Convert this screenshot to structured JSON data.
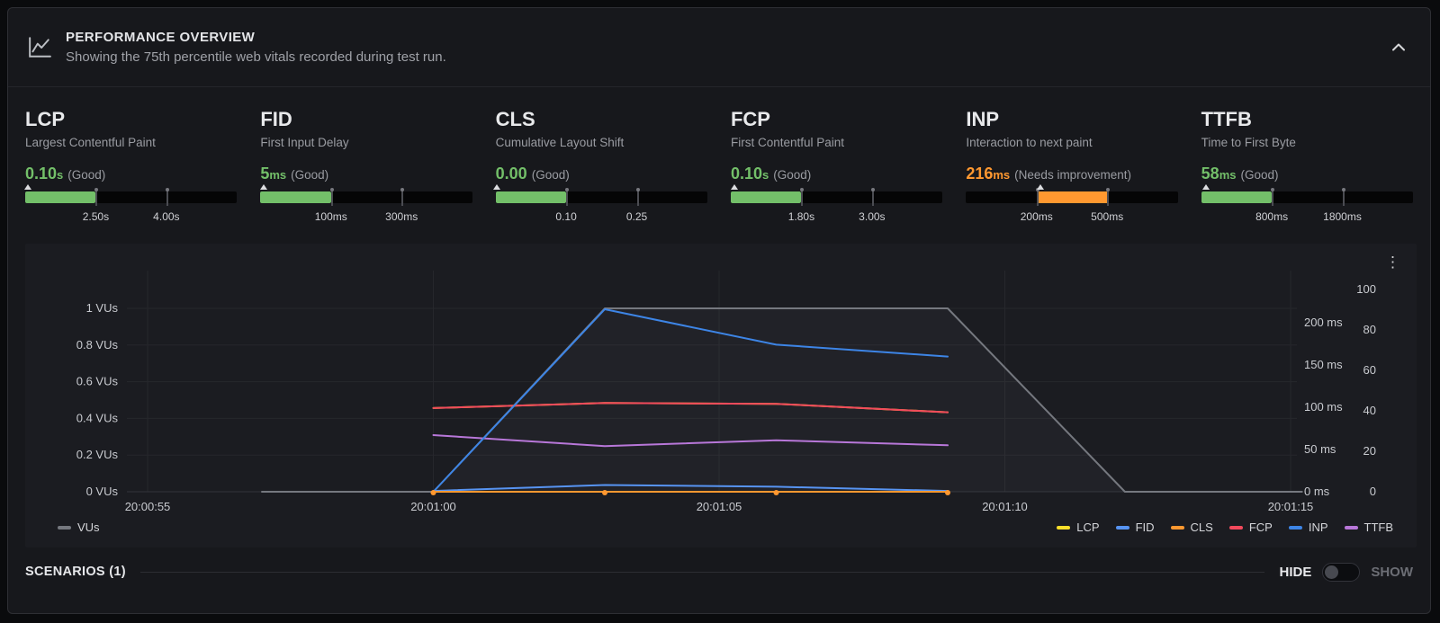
{
  "panel": {
    "title": "PERFORMANCE OVERVIEW",
    "subtitle": "Showing the 75th percentile web vitals recorded during test run."
  },
  "colors": {
    "good": "#73bf69",
    "needs_improvement": "#ff9830"
  },
  "metrics": {
    "items": [
      {
        "name": "LCP",
        "description": "Largest Contentful Paint",
        "value": "0.10",
        "unit": "s",
        "rating": "(Good)",
        "color": "#73bf69",
        "segment_index": 0,
        "marker_pct": 1.3,
        "thresholds": [
          "2.50s",
          "4.00s"
        ]
      },
      {
        "name": "FID",
        "description": "First Input Delay",
        "value": "5",
        "unit": "ms",
        "rating": "(Good)",
        "color": "#73bf69",
        "segment_index": 0,
        "marker_pct": 1.7,
        "thresholds": [
          "100ms",
          "300ms"
        ]
      },
      {
        "name": "CLS",
        "description": "Cumulative Layout Shift",
        "value": "0.00",
        "unit": "",
        "rating": "(Good)",
        "color": "#73bf69",
        "segment_index": 0,
        "marker_pct": 0.6,
        "thresholds": [
          "0.10",
          "0.25"
        ]
      },
      {
        "name": "FCP",
        "description": "First Contentful Paint",
        "value": "0.10",
        "unit": "s",
        "rating": "(Good)",
        "color": "#73bf69",
        "segment_index": 0,
        "marker_pct": 1.9,
        "thresholds": [
          "1.80s",
          "3.00s"
        ]
      },
      {
        "name": "INP",
        "description": "Interaction to next paint",
        "value": "216",
        "unit": "ms",
        "rating": "(Needs improvement)",
        "color": "#ff9830",
        "segment_index": 1,
        "marker_pct": 35,
        "thresholds": [
          "200ms",
          "500ms"
        ]
      },
      {
        "name": "TTFB",
        "description": "Time to First Byte",
        "value": "58",
        "unit": "ms",
        "rating": "(Good)",
        "color": "#73bf69",
        "segment_index": 0,
        "marker_pct": 2.4,
        "thresholds": [
          "800ms",
          "1800ms"
        ]
      }
    ]
  },
  "chart_data": {
    "type": "line",
    "x_axis": {
      "ticks": [
        {
          "t": 0,
          "label": "20:00:55"
        },
        {
          "t": 5,
          "label": "20:01:00"
        },
        {
          "t": 10,
          "label": "20:01:05"
        },
        {
          "t": 15,
          "label": "20:01:10"
        },
        {
          "t": 20,
          "label": "20:01:15"
        }
      ]
    },
    "y_axis_left": {
      "unit": "VUs",
      "ticks": [
        {
          "v": 0,
          "label": "0 VUs"
        },
        {
          "v": 0.2,
          "label": "0.2 VUs"
        },
        {
          "v": 0.4,
          "label": "0.4 VUs"
        },
        {
          "v": 0.6,
          "label": "0.6 VUs"
        },
        {
          "v": 0.8,
          "label": "0.8 VUs"
        },
        {
          "v": 1,
          "label": "1 VUs"
        }
      ]
    },
    "y_axis_right_ms": {
      "ticks": [
        {
          "v": 0,
          "label": "0 ms"
        },
        {
          "v": 50,
          "label": "50 ms"
        },
        {
          "v": 100,
          "label": "100 ms"
        },
        {
          "v": 150,
          "label": "150 ms"
        },
        {
          "v": 200,
          "label": "200 ms"
        }
      ]
    },
    "y_axis_right_count": {
      "ticks": [
        {
          "v": 0,
          "label": "0"
        },
        {
          "v": 20,
          "label": "20"
        },
        {
          "v": 40,
          "label": "40"
        },
        {
          "v": 60,
          "label": "60"
        },
        {
          "v": 80,
          "label": "80"
        },
        {
          "v": 100,
          "label": "100"
        }
      ]
    },
    "series": [
      {
        "name": "VUs",
        "axis": "vu",
        "color": "#75787f",
        "width": 2,
        "area": true,
        "points": [
          [
            2,
            0
          ],
          [
            5,
            0
          ],
          [
            8,
            1
          ],
          [
            14,
            1
          ],
          [
            17.1,
            0
          ],
          [
            20.2,
            0
          ]
        ]
      },
      {
        "name": "LCP",
        "axis": "ms",
        "color": "#fade2a",
        "width": 2,
        "points": [
          [
            5,
            99
          ],
          [
            8,
            105
          ],
          [
            11,
            104
          ],
          [
            14,
            94
          ]
        ]
      },
      {
        "name": "TTFB",
        "axis": "ms",
        "color": "#b877d9",
        "width": 2,
        "points": [
          [
            5,
            67
          ],
          [
            8,
            54
          ],
          [
            11,
            61
          ],
          [
            14,
            55
          ]
        ]
      },
      {
        "name": "FCP",
        "axis": "ms",
        "color": "#f2495c",
        "width": 2,
        "points": [
          [
            5,
            99
          ],
          [
            8,
            105
          ],
          [
            11,
            104
          ],
          [
            14,
            94
          ]
        ]
      },
      {
        "name": "INP",
        "axis": "ms",
        "color": "#3d85e6",
        "width": 2,
        "points": [
          [
            5,
            0
          ],
          [
            8,
            216
          ],
          [
            11,
            174
          ],
          [
            14,
            160
          ]
        ]
      },
      {
        "name": "FID",
        "axis": "ms",
        "color": "#5794f2",
        "width": 2,
        "points": [
          [
            5,
            1
          ],
          [
            8,
            8
          ],
          [
            11,
            6
          ],
          [
            14,
            1
          ]
        ]
      },
      {
        "name": "CLS",
        "axis": "ms",
        "color": "#ff9830",
        "width": 2,
        "markers": true,
        "points": [
          [
            5,
            0
          ],
          [
            8,
            0
          ],
          [
            11,
            0
          ],
          [
            14,
            0
          ]
        ]
      }
    ],
    "legend_left": [
      {
        "label": "VUs",
        "color": "#75787f"
      }
    ],
    "legend_right": [
      {
        "label": "LCP",
        "color": "#fade2a"
      },
      {
        "label": "FID",
        "color": "#5794f2"
      },
      {
        "label": "CLS",
        "color": "#ff9830"
      },
      {
        "label": "FCP",
        "color": "#f2495c"
      },
      {
        "label": "INP",
        "color": "#3d85e6"
      },
      {
        "label": "TTFB",
        "color": "#b877d9"
      }
    ]
  },
  "scenarios": {
    "label": "SCENARIOS (1)",
    "hide_label": "HIDE",
    "show_label": "SHOW"
  }
}
